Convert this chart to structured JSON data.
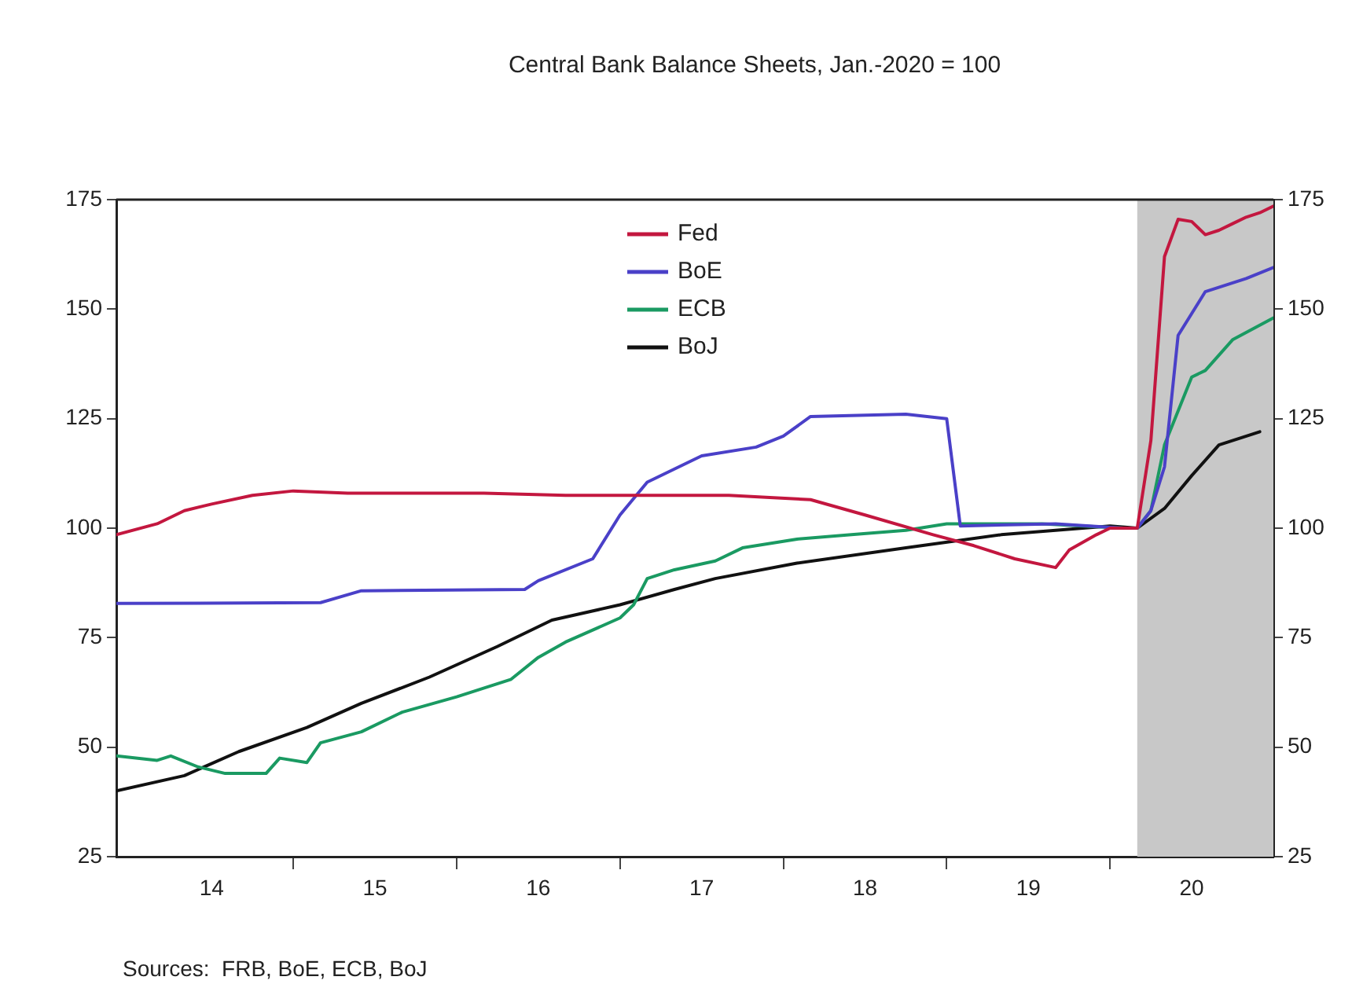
{
  "chart_data": {
    "type": "line",
    "title": "Central Bank Balance Sheets, Jan.-2020 = 100",
    "xlim": [
      "2013-10",
      "2020-11"
    ],
    "xticks": [
      {
        "value": "2014-05",
        "label": "14"
      },
      {
        "value": "2014-11",
        "label": null
      },
      {
        "value": "2015-05",
        "label": "15"
      },
      {
        "value": "2015-11",
        "label": null
      },
      {
        "value": "2016-05",
        "label": "16"
      },
      {
        "value": "2016-11",
        "label": null
      },
      {
        "value": "2017-05",
        "label": "17"
      },
      {
        "value": "2017-11",
        "label": null
      },
      {
        "value": "2018-05",
        "label": "18"
      },
      {
        "value": "2018-11",
        "label": null
      },
      {
        "value": "2019-05",
        "label": "19"
      },
      {
        "value": "2019-11",
        "label": null
      },
      {
        "value": "2020-05",
        "label": "20"
      }
    ],
    "ylim": [
      25,
      175
    ],
    "yticks": [
      25,
      50,
      75,
      100,
      125,
      150,
      175
    ],
    "y2lim": [
      25,
      175
    ],
    "y2ticks": [
      25,
      50,
      75,
      100,
      125,
      150,
      175
    ],
    "grid": false,
    "legend": "top",
    "line_style": "solid",
    "marker": "none",
    "bands": [
      {
        "axis": "x",
        "from": "2020-01",
        "to": "2020-11",
        "color": "#c8c8c8"
      }
    ],
    "annotations": [
      "Sources:  FRB, BoE, ECB, BoJ"
    ],
    "series": [
      {
        "name": "Fed",
        "color": "#c3173f",
        "x": [
          "2013-10",
          "2014-01",
          "2014-03",
          "2014-05",
          "2014-08",
          "2014-11",
          "2015-03",
          "2015-08",
          "2016-01",
          "2016-07",
          "2017-01",
          "2017-07",
          "2017-10",
          "2018-01",
          "2018-05",
          "2018-10",
          "2019-01",
          "2019-04",
          "2019-07",
          "2019-08",
          "2019-10",
          "2019-11",
          "2020-01",
          "2020-02",
          "2020-03",
          "2020-04",
          "2020-05",
          "2020-06",
          "2020-07",
          "2020-08",
          "2020-09",
          "2020-10",
          "2020-11"
        ],
        "values": [
          98.5,
          101,
          104,
          105.5,
          107.5,
          108.5,
          108,
          108,
          108,
          107.5,
          107.5,
          107.5,
          107,
          106.5,
          103,
          98.5,
          96,
          93,
          91,
          95,
          98.5,
          100,
          100,
          120,
          162,
          170.5,
          170,
          167,
          168,
          169.5,
          171,
          172,
          173.5
        ]
      },
      {
        "name": "BoE",
        "color": "#4a40c8",
        "x": [
          "2013-10",
          "2015-01",
          "2015-04",
          "2016-04",
          "2016-05",
          "2016-09",
          "2016-11",
          "2017-01",
          "2017-03",
          "2017-05",
          "2017-09",
          "2017-11",
          "2018-01",
          "2018-08",
          "2018-11",
          "2018-12",
          "2019-07",
          "2019-12",
          "2020-01",
          "2020-02",
          "2020-03",
          "2020-04",
          "2020-06",
          "2020-09",
          "2020-11"
        ],
        "values": [
          82.8,
          83,
          85.7,
          86,
          88,
          93,
          103,
          110.5,
          113.5,
          116.5,
          118.5,
          121,
          125.5,
          126,
          125,
          100.5,
          101,
          100,
          100,
          104,
          114,
          144,
          154,
          157,
          159.5
        ]
      },
      {
        "name": "ECB",
        "color": "#1a9a62",
        "x": [
          "2013-10",
          "2014-01",
          "2014-02",
          "2014-04",
          "2014-06",
          "2014-09",
          "2014-10",
          "2014-12",
          "2015-01",
          "2015-04",
          "2015-07",
          "2015-11",
          "2016-03",
          "2016-05",
          "2016-07",
          "2016-11",
          "2016-12",
          "2017-01",
          "2017-03",
          "2017-06",
          "2017-08",
          "2017-12",
          "2018-04",
          "2018-08",
          "2018-11",
          "2019-06",
          "2019-12",
          "2020-01",
          "2020-02",
          "2020-03",
          "2020-05",
          "2020-06",
          "2020-08",
          "2020-11"
        ],
        "values": [
          48,
          47,
          48,
          45.5,
          44,
          44,
          47.5,
          46.5,
          51,
          53.5,
          58,
          61.5,
          65.5,
          70.5,
          74,
          79.5,
          82.5,
          88.5,
          90.5,
          92.5,
          95.5,
          97.5,
          98.5,
          99.5,
          101,
          101,
          100,
          100,
          104,
          119,
          134.5,
          136,
          143,
          148
        ]
      },
      {
        "name": "BoJ",
        "color": "#111111",
        "x": [
          "2013-10",
          "2014-03",
          "2014-07",
          "2014-12",
          "2015-04",
          "2015-09",
          "2016-02",
          "2016-06",
          "2016-11",
          "2017-03",
          "2017-06",
          "2017-12",
          "2018-08",
          "2019-03",
          "2019-11",
          "2020-01",
          "2020-03",
          "2020-05",
          "2020-07",
          "2020-10"
        ],
        "values": [
          40,
          43.5,
          49,
          54.5,
          60,
          66,
          73,
          79,
          82.5,
          86,
          88.5,
          92,
          95.5,
          98.5,
          100.5,
          100,
          104.5,
          112,
          119,
          122
        ]
      }
    ]
  }
}
